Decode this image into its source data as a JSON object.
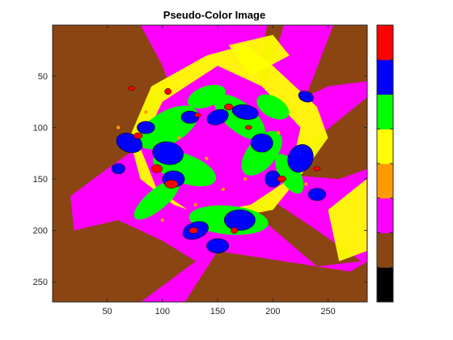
{
  "chart_data": {
    "type": "heatmap",
    "title": "Pseudo-Color Image",
    "xlabel": "",
    "ylabel": "",
    "xlim": [
      0.5,
      285.5
    ],
    "ylim": [
      0.5,
      269.5
    ],
    "y_reversed": true,
    "x_ticks": [
      50,
      100,
      150,
      200,
      250
    ],
    "y_ticks": [
      50,
      100,
      150,
      200,
      250
    ],
    "grid": false,
    "colorbar": {
      "levels": 8,
      "colors_bottom_to_top": [
        "#000000",
        "#8b4513",
        "#ff00ff",
        "#ff9900",
        "#ffff00",
        "#00ff00",
        "#0000ff",
        "#ff0000"
      ],
      "tick_labels": []
    },
    "regions": {
      "background_color": "#ff00ff",
      "brown_corner_regions": true,
      "flower_center": [
        160,
        140
      ]
    }
  }
}
